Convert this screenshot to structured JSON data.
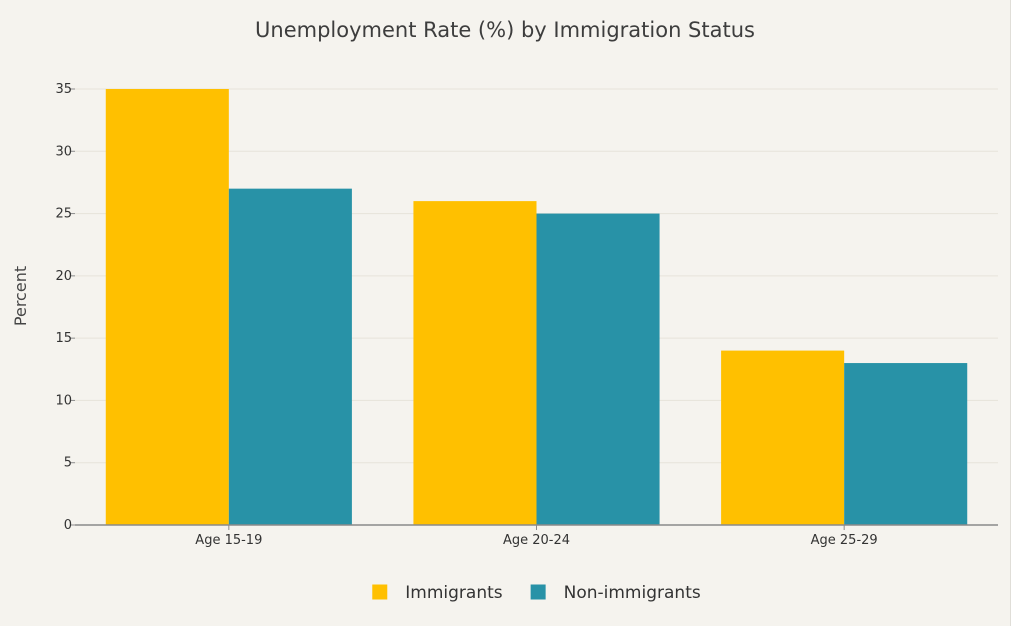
{
  "chart_data": {
    "type": "bar",
    "title": "Unemployment Rate (%) by Immigration Status",
    "xlabel": "",
    "ylabel": "Percent",
    "categories": [
      "Age 15-19",
      "Age 20-24",
      "Age 25-29"
    ],
    "series": [
      {
        "name": "Immigrants",
        "values": [
          35,
          26,
          14
        ],
        "color": "#ffc000"
      },
      {
        "name": "Non-immigrants",
        "values": [
          27,
          25,
          13
        ],
        "color": "#2892a7"
      }
    ],
    "ylim": [
      0,
      35
    ],
    "yticks": [
      0,
      5,
      10,
      15,
      20,
      25,
      30,
      35
    ],
    "grid": true,
    "legend_position": "bottom-center"
  }
}
